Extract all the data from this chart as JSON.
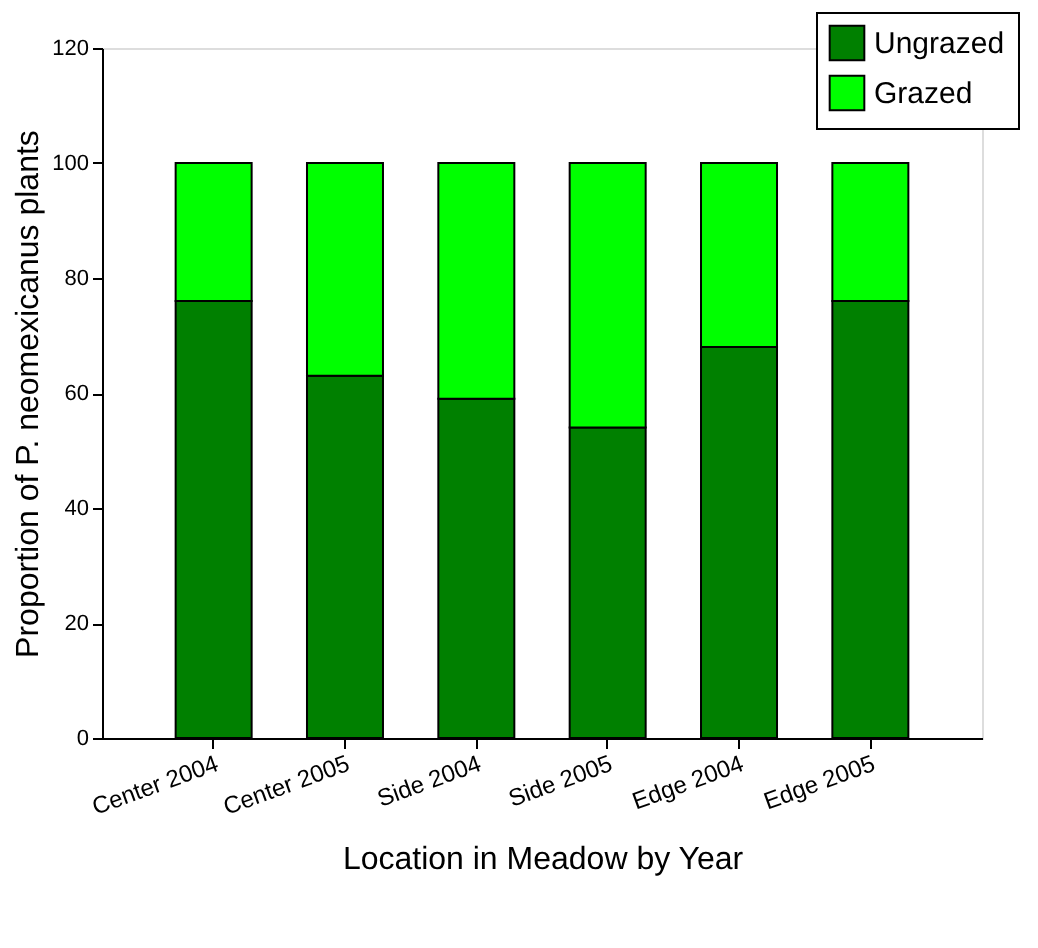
{
  "chart_data": {
    "type": "bar",
    "stacked": true,
    "xlabel": "Location in Meadow by Year",
    "ylabel": "Proportion of P. neomexicanus plants",
    "categories": [
      "Center 2004",
      "Center 2005",
      "Side 2004",
      "Side 2005",
      "Edge 2004",
      "Edge 2005"
    ],
    "series": [
      {
        "name": "Ungrazed",
        "color": "#008000",
        "values": [
          76,
          63,
          59,
          54,
          68,
          76
        ]
      },
      {
        "name": "Grazed",
        "color": "#00ff00",
        "values": [
          24,
          37,
          41,
          46,
          32,
          24
        ]
      }
    ],
    "ylim": [
      0,
      120
    ],
    "yticks": [
      0,
      20,
      40,
      60,
      80,
      100,
      120
    ],
    "grid": false,
    "legend": "top right"
  }
}
